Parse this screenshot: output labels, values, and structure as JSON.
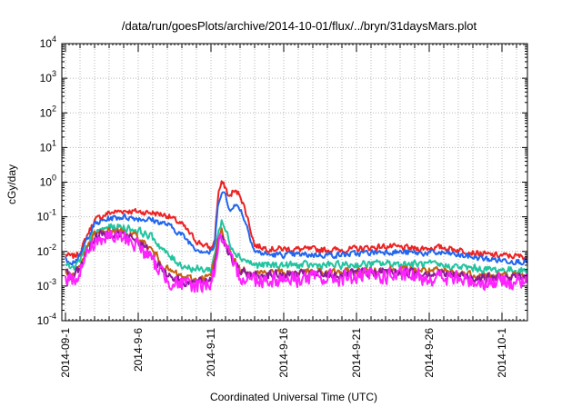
{
  "chart_data": {
    "type": "line",
    "title": "/data/run/goesPlots/archive/2014-10-01/flux/../bryn/31daysMars.plot",
    "xlabel": "Coordinated Universal Time (UTC)",
    "ylabel": "cGy/day",
    "yscale": "log",
    "ylim": [
      0.0001,
      10000
    ],
    "xlim": [
      "2014-08-31T18:00",
      "2014-10-02T18:00"
    ],
    "grid": true,
    "x_tick_labels": [
      "2014-09-1",
      "2014-9-6",
      "2014-9-11",
      "2014-9-16",
      "2014-9-21",
      "2014-9-26",
      "2014-10-1"
    ],
    "x_tick_dates": [
      "2014-09-01",
      "2014-09-06",
      "2014-09-11",
      "2014-09-16",
      "2014-09-21",
      "2014-09-26",
      "2014-10-01"
    ],
    "y_tick_labels": [
      {
        "base": "10",
        "exp": "4",
        "value": 10000
      },
      {
        "base": "10",
        "exp": "3",
        "value": 1000
      },
      {
        "base": "10",
        "exp": "2",
        "value": 100
      },
      {
        "base": "10",
        "exp": "1",
        "value": 10
      },
      {
        "base": "10",
        "exp": "0",
        "value": 1
      },
      {
        "base": "10",
        "exp": "-1",
        "value": 0.1
      },
      {
        "base": "10",
        "exp": "-2",
        "value": 0.01
      },
      {
        "base": "10",
        "exp": "-3",
        "value": 0.001
      },
      {
        "base": "10",
        "exp": "-4",
        "value": 0.0001
      }
    ],
    "series": [
      {
        "color": "#ee2222",
        "noise": 0.08,
        "points": [
          [
            "2014-09-01",
            0.008
          ],
          [
            "2014-09-01T12:00",
            0.007
          ],
          [
            "2014-09-02",
            0.009
          ],
          [
            "2014-09-02T12:00",
            0.03
          ],
          [
            "2014-09-03",
            0.08
          ],
          [
            "2014-09-04",
            0.13
          ],
          [
            "2014-09-05",
            0.15
          ],
          [
            "2014-09-06",
            0.14
          ],
          [
            "2014-09-07",
            0.13
          ],
          [
            "2014-09-08",
            0.11
          ],
          [
            "2014-09-09",
            0.06
          ],
          [
            "2014-09-10",
            0.02
          ],
          [
            "2014-09-11",
            0.012
          ],
          [
            "2014-09-11T06:00",
            0.02
          ],
          [
            "2014-09-11T12:00",
            0.5
          ],
          [
            "2014-09-11T18:00",
            0.95
          ],
          [
            "2014-09-12",
            0.7
          ],
          [
            "2014-09-12T06:00",
            0.35
          ],
          [
            "2014-09-12T12:00",
            0.55
          ],
          [
            "2014-09-13",
            0.45
          ],
          [
            "2014-09-13T12:00",
            0.1
          ],
          [
            "2014-09-14",
            0.015
          ],
          [
            "2014-09-15",
            0.012
          ],
          [
            "2014-09-20",
            0.011
          ],
          [
            "2014-09-23",
            0.014
          ],
          [
            "2014-09-25",
            0.012
          ],
          [
            "2014-09-27",
            0.013
          ],
          [
            "2014-09-30",
            0.008
          ],
          [
            "2014-10-02T18:00",
            0.007
          ]
        ]
      },
      {
        "color": "#2266ee",
        "noise": 0.08,
        "points": [
          [
            "2014-09-01",
            0.006
          ],
          [
            "2014-09-01T12:00",
            0.005
          ],
          [
            "2014-09-02",
            0.007
          ],
          [
            "2014-09-02T12:00",
            0.025
          ],
          [
            "2014-09-03",
            0.06
          ],
          [
            "2014-09-04",
            0.09
          ],
          [
            "2014-09-05",
            0.1
          ],
          [
            "2014-09-06",
            0.09
          ],
          [
            "2014-09-07",
            0.08
          ],
          [
            "2014-09-08",
            0.06
          ],
          [
            "2014-09-09",
            0.03
          ],
          [
            "2014-09-10",
            0.012
          ],
          [
            "2014-09-11",
            0.009
          ],
          [
            "2014-09-11T06:00",
            0.015
          ],
          [
            "2014-09-11T12:00",
            0.25
          ],
          [
            "2014-09-11T18:00",
            0.6
          ],
          [
            "2014-09-12",
            0.4
          ],
          [
            "2014-09-12T06:00",
            0.15
          ],
          [
            "2014-09-12T12:00",
            0.22
          ],
          [
            "2014-09-13",
            0.18
          ],
          [
            "2014-09-13T12:00",
            0.05
          ],
          [
            "2014-09-14",
            0.01
          ],
          [
            "2014-09-15",
            0.008
          ],
          [
            "2014-09-20",
            0.008
          ],
          [
            "2014-09-23",
            0.01
          ],
          [
            "2014-09-25",
            0.009
          ],
          [
            "2014-09-27",
            0.009
          ],
          [
            "2014-09-30",
            0.006
          ],
          [
            "2014-10-02T18:00",
            0.005
          ]
        ]
      },
      {
        "color": "#22c4a0",
        "noise": 0.1,
        "points": [
          [
            "2014-09-01",
            0.004
          ],
          [
            "2014-09-01T12:00",
            0.003
          ],
          [
            "2014-09-02",
            0.005
          ],
          [
            "2014-09-02T12:00",
            0.015
          ],
          [
            "2014-09-03",
            0.035
          ],
          [
            "2014-09-04",
            0.05
          ],
          [
            "2014-09-05",
            0.05
          ],
          [
            "2014-09-06",
            0.04
          ],
          [
            "2014-09-07",
            0.025
          ],
          [
            "2014-09-08",
            0.008
          ],
          [
            "2014-09-09",
            0.004
          ],
          [
            "2014-09-10",
            0.003
          ],
          [
            "2014-09-11",
            0.003
          ],
          [
            "2014-09-11T06:00",
            0.008
          ],
          [
            "2014-09-11T12:00",
            0.04
          ],
          [
            "2014-09-11T18:00",
            0.07
          ],
          [
            "2014-09-12",
            0.04
          ],
          [
            "2014-09-12T12:00",
            0.012
          ],
          [
            "2014-09-13",
            0.007
          ],
          [
            "2014-09-14",
            0.004
          ],
          [
            "2014-09-20",
            0.004
          ],
          [
            "2014-09-23",
            0.0045
          ],
          [
            "2014-09-26",
            0.0042
          ],
          [
            "2014-09-30",
            0.003
          ],
          [
            "2014-10-02T18:00",
            0.0028
          ]
        ]
      },
      {
        "color": "#c46010",
        "noise": 0.1,
        "points": [
          [
            "2014-09-01",
            0.003
          ],
          [
            "2014-09-01T12:00",
            0.002
          ],
          [
            "2014-09-02",
            0.004
          ],
          [
            "2014-09-02T12:00",
            0.012
          ],
          [
            "2014-09-03",
            0.03
          ],
          [
            "2014-09-04",
            0.04
          ],
          [
            "2014-09-05",
            0.035
          ],
          [
            "2014-09-06",
            0.025
          ],
          [
            "2014-09-07",
            0.01
          ],
          [
            "2014-09-08",
            0.003
          ],
          [
            "2014-09-09",
            0.0018
          ],
          [
            "2014-09-10",
            0.0015
          ],
          [
            "2014-09-11",
            0.002
          ],
          [
            "2014-09-11T06:00",
            0.005
          ],
          [
            "2014-09-11T12:00",
            0.025
          ],
          [
            "2014-09-11T18:00",
            0.04
          ],
          [
            "2014-09-12",
            0.02
          ],
          [
            "2014-09-12T12:00",
            0.006
          ],
          [
            "2014-09-13",
            0.003
          ],
          [
            "2014-09-14",
            0.0025
          ],
          [
            "2014-09-20",
            0.0025
          ],
          [
            "2014-09-23",
            0.003
          ],
          [
            "2014-09-26",
            0.0028
          ],
          [
            "2014-09-30",
            0.002
          ],
          [
            "2014-10-02T18:00",
            0.002
          ]
        ]
      },
      {
        "color": "#8a1a9a",
        "noise": 0.12,
        "points": [
          [
            "2014-09-01",
            0.0025
          ],
          [
            "2014-09-01T12:00",
            0.0018
          ],
          [
            "2014-09-02",
            0.0035
          ],
          [
            "2014-09-02T12:00",
            0.01
          ],
          [
            "2014-09-03",
            0.025
          ],
          [
            "2014-09-04",
            0.035
          ],
          [
            "2014-09-05",
            0.03
          ],
          [
            "2014-09-06",
            0.02
          ],
          [
            "2014-09-07",
            0.007
          ],
          [
            "2014-09-08",
            0.0022
          ],
          [
            "2014-09-09",
            0.0014
          ],
          [
            "2014-09-10",
            0.0012
          ],
          [
            "2014-09-11",
            0.0016
          ],
          [
            "2014-09-11T06:00",
            0.004
          ],
          [
            "2014-09-11T12:00",
            0.02
          ],
          [
            "2014-09-11T18:00",
            0.033
          ],
          [
            "2014-09-12",
            0.016
          ],
          [
            "2014-09-12T12:00",
            0.005
          ],
          [
            "2014-09-13",
            0.0025
          ],
          [
            "2014-09-14",
            0.0021
          ],
          [
            "2014-09-20",
            0.0021
          ],
          [
            "2014-09-23",
            0.0026
          ],
          [
            "2014-09-26",
            0.0024
          ],
          [
            "2014-09-30",
            0.0017
          ],
          [
            "2014-10-02T18:00",
            0.0017
          ]
        ]
      },
      {
        "color": "#ff22ff",
        "noise": 0.22,
        "points": [
          [
            "2014-09-01",
            0.002
          ],
          [
            "2014-09-01T12:00",
            0.0013
          ],
          [
            "2014-09-02",
            0.003
          ],
          [
            "2014-09-02T12:00",
            0.009
          ],
          [
            "2014-09-03",
            0.02
          ],
          [
            "2014-09-04",
            0.027
          ],
          [
            "2014-09-05",
            0.024
          ],
          [
            "2014-09-06",
            0.016
          ],
          [
            "2014-09-07",
            0.005
          ],
          [
            "2014-09-08",
            0.0016
          ],
          [
            "2014-09-09",
            0.0011
          ],
          [
            "2014-09-10",
            0.001
          ],
          [
            "2014-09-11",
            0.0013
          ],
          [
            "2014-09-11T06:00",
            0.003
          ],
          [
            "2014-09-11T12:00",
            0.015
          ],
          [
            "2014-09-11T18:00",
            0.026
          ],
          [
            "2014-09-12",
            0.012
          ],
          [
            "2014-09-12T12:00",
            0.004
          ],
          [
            "2014-09-13",
            0.002
          ],
          [
            "2014-09-14",
            0.0016
          ],
          [
            "2014-09-20",
            0.0017
          ],
          [
            "2014-09-23",
            0.002
          ],
          [
            "2014-09-26",
            0.0018
          ],
          [
            "2014-09-30",
            0.0013
          ],
          [
            "2014-10-02T18:00",
            0.0014
          ]
        ]
      }
    ]
  }
}
